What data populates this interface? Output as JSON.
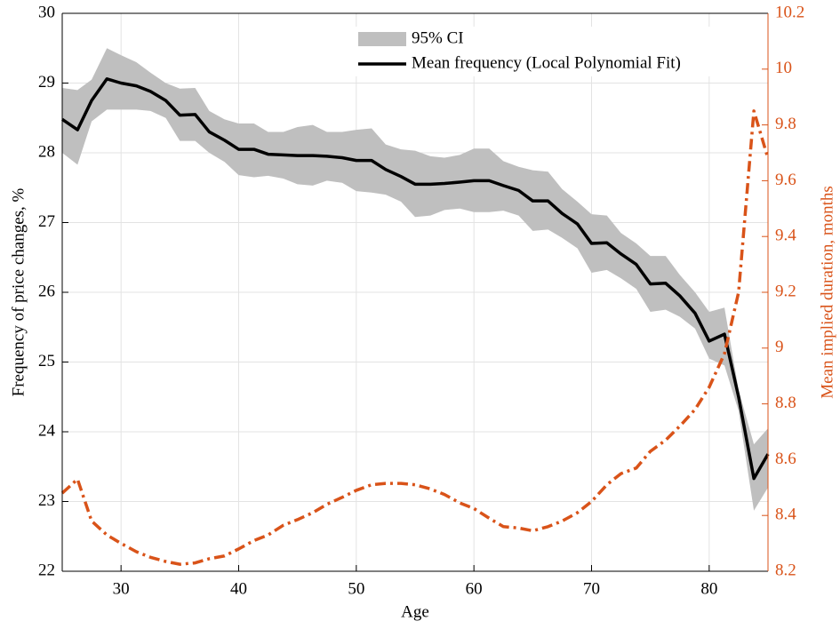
{
  "chart_data": {
    "type": "line",
    "xlabel": "Age",
    "ylabel": "Frequency of price changes, %",
    "y2label": "Mean implied duration, months",
    "x": [
      25,
      26.3,
      27.5,
      28.8,
      30,
      31.3,
      32.5,
      33.8,
      35,
      36.3,
      37.5,
      38.8,
      40,
      41.3,
      42.5,
      43.8,
      45,
      46.3,
      47.5,
      48.8,
      50,
      51.3,
      52.5,
      53.8,
      55,
      56.3,
      57.5,
      58.8,
      60,
      61.3,
      62.5,
      63.8,
      65,
      66.3,
      67.5,
      68.8,
      70,
      71.3,
      72.5,
      73.8,
      75,
      76.3,
      77.5,
      78.8,
      80,
      81.3,
      82.5,
      83.8,
      85
    ],
    "series": [
      {
        "name": "95% CI",
        "color": "#bfbfbf",
        "upper": [
          28.93,
          28.9,
          29.05,
          29.5,
          29.4,
          29.3,
          29.15,
          29.0,
          28.92,
          28.93,
          28.6,
          28.48,
          28.42,
          28.42,
          28.3,
          28.3,
          28.37,
          28.4,
          28.3,
          28.3,
          28.33,
          28.35,
          28.12,
          28.05,
          28.03,
          27.95,
          27.93,
          27.97,
          28.06,
          28.06,
          27.88,
          27.8,
          27.75,
          27.73,
          27.48,
          27.3,
          27.12,
          27.1,
          26.85,
          26.7,
          26.52,
          26.52,
          26.25,
          26.0,
          25.72,
          25.78,
          24.6,
          23.82,
          24.05
        ],
        "lower": [
          28.0,
          27.83,
          28.45,
          28.62,
          28.62,
          28.62,
          28.6,
          28.5,
          28.17,
          28.17,
          28.0,
          27.87,
          27.68,
          27.65,
          27.67,
          27.63,
          27.55,
          27.53,
          27.6,
          27.57,
          27.45,
          27.43,
          27.4,
          27.3,
          27.08,
          27.1,
          27.18,
          27.2,
          27.15,
          27.15,
          27.17,
          27.1,
          26.88,
          26.9,
          26.78,
          26.63,
          26.28,
          26.32,
          26.2,
          26.05,
          25.72,
          25.75,
          25.65,
          25.48,
          25.05,
          24.95,
          24.3,
          22.87,
          23.2
        ]
      },
      {
        "name": "Mean frequency (Local Polynomial Fit)",
        "color": "#000000",
        "values": [
          28.48,
          28.33,
          28.75,
          29.06,
          29.0,
          28.96,
          28.88,
          28.75,
          28.54,
          28.55,
          28.3,
          28.18,
          28.05,
          28.05,
          27.98,
          27.97,
          27.96,
          27.96,
          27.95,
          27.93,
          27.89,
          27.89,
          27.76,
          27.66,
          27.55,
          27.55,
          27.56,
          27.58,
          27.6,
          27.6,
          27.53,
          27.46,
          27.31,
          27.31,
          27.13,
          26.98,
          26.7,
          26.71,
          26.55,
          26.4,
          26.12,
          26.13,
          25.95,
          25.7,
          25.3,
          25.4,
          24.5,
          23.33,
          23.68
        ]
      },
      {
        "color": "#d95319",
        "axis": "y2",
        "dashed": true,
        "values": [
          8.48,
          8.53,
          8.38,
          8.33,
          8.3,
          8.27,
          8.25,
          8.235,
          8.225,
          8.23,
          8.245,
          8.255,
          8.28,
          8.31,
          8.33,
          8.365,
          8.385,
          8.41,
          8.44,
          8.465,
          8.49,
          8.51,
          8.515,
          8.515,
          8.51,
          8.495,
          8.475,
          8.445,
          8.425,
          8.39,
          8.36,
          8.355,
          8.345,
          8.36,
          8.38,
          8.41,
          8.45,
          8.51,
          8.55,
          8.57,
          8.63,
          8.67,
          8.72,
          8.78,
          8.86,
          8.98,
          9.2,
          9.85,
          9.68
        ]
      }
    ],
    "xlim": [
      25,
      85
    ],
    "xticks": [
      30,
      40,
      50,
      60,
      70,
      80
    ],
    "ylim": [
      22,
      30
    ],
    "yticks": [
      22,
      23,
      24,
      25,
      26,
      27,
      28,
      29,
      30
    ],
    "y2lim": [
      8.2,
      10.2
    ],
    "y2ticks": [
      8.2,
      8.4,
      8.6,
      8.8,
      9,
      9.2,
      9.4,
      9.6,
      9.8,
      10,
      10.2
    ],
    "grid": true,
    "legend": "top"
  }
}
